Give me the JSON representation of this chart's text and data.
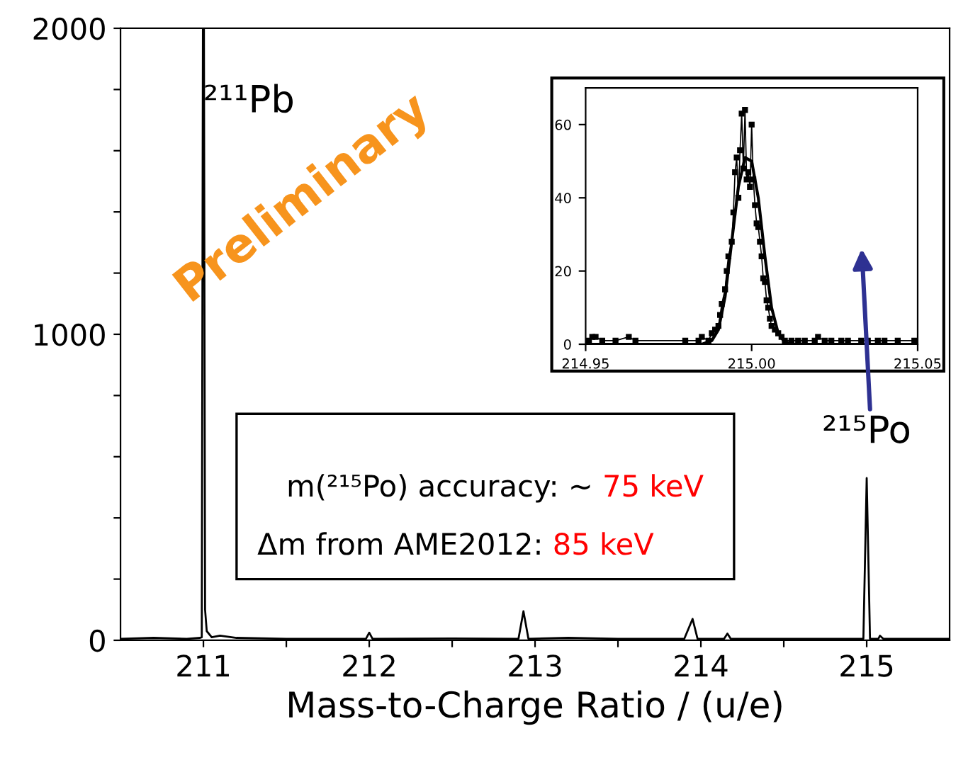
{
  "chart_data": [
    {
      "type": "line",
      "xlabel": "Mass-to-Charge Ratio / (u/e)",
      "xlim": [
        210.5,
        215.5
      ],
      "ylim": [
        0,
        2000
      ],
      "xticks": [
        211,
        {
          "value": 211.5,
          "label": null
        },
        212,
        {
          "value": 212.5,
          "label": null
        },
        213,
        {
          "value": 213.5,
          "label": null
        },
        214,
        {
          "value": 214.5,
          "label": null
        },
        215
      ],
      "yticks": [
        0,
        {
          "value": 200,
          "label": null
        },
        {
          "value": 400,
          "label": null
        },
        {
          "value": 600,
          "label": null
        },
        {
          "value": 800,
          "label": null
        },
        1000,
        {
          "value": 1200,
          "label": null
        },
        {
          "value": 1400,
          "label": null
        },
        {
          "value": 1600,
          "label": null
        },
        {
          "value": 1800,
          "label": null
        },
        2000
      ],
      "grid": false,
      "legend": false,
      "marker": "none",
      "line_style": "solid",
      "series": [
        {
          "color": "#000000",
          "x": [
            210.5,
            210.7,
            210.9,
            210.98,
            210.99,
            210.997,
            211.003,
            211.01,
            211.02,
            211.05,
            211.1,
            211.2,
            211.5,
            211.98,
            212.0,
            212.02,
            212.5,
            212.9,
            212.93,
            212.96,
            213.2,
            213.5,
            213.9,
            213.95,
            213.98,
            214.14,
            214.16,
            214.18,
            214.5,
            214.98,
            215.0,
            215.02,
            215.07,
            215.08,
            215.1,
            215.5
          ],
          "values": [
            5,
            8,
            5,
            8,
            10,
            2000,
            2000,
            100,
            30,
            10,
            15,
            8,
            5,
            5,
            25,
            5,
            6,
            5,
            95,
            5,
            8,
            5,
            5,
            70,
            5,
            5,
            22,
            5,
            5,
            5,
            530,
            5,
            5,
            15,
            5,
            5
          ]
        }
      ],
      "annotations": [
        {
          "text": "²¹¹Pb",
          "x": 211,
          "y": 1700
        },
        "²¹⁵Po",
        "Preliminary",
        "m(²¹⁵Po) accuracy: ~ ",
        "75 keV",
        "Δm from AME2012: ",
        "85 keV"
      ]
    },
    {
      "type": "line",
      "xlim": [
        214.95,
        215.05
      ],
      "ylim": [
        0,
        70
      ],
      "xticks": [
        {
          "value": 214.95,
          "label": "214.95"
        },
        {
          "value": 215.0,
          "label": "215.00"
        },
        {
          "value": 215.05,
          "label": "215.05"
        }
      ],
      "yticks": [
        0,
        20,
        40,
        60
      ],
      "grid": false,
      "legend": false,
      "series": [
        {
          "color": "#000000",
          "marker": "square",
          "line_style": "solid",
          "x": [
            214.95,
            214.951,
            214.952,
            214.953,
            214.955,
            214.959,
            214.963,
            214.965,
            214.98,
            214.984,
            214.985,
            214.987,
            214.988,
            214.989,
            214.99,
            214.9905,
            214.991,
            214.992,
            214.9925,
            214.993,
            214.994,
            214.9945,
            214.995,
            214.9955,
            214.996,
            214.9965,
            214.997,
            214.9975,
            214.998,
            214.9985,
            214.999,
            214.9995,
            215.0,
            215.0005,
            215.001,
            215.0015,
            215.002,
            215.0025,
            215.003,
            215.0035,
            215.004,
            215.0045,
            215.005,
            215.0055,
            215.006,
            215.007,
            215.008,
            215.009,
            215.01,
            215.012,
            215.014,
            215.016,
            215.019,
            215.02,
            215.022,
            215.024,
            215.027,
            215.029,
            215.033,
            215.035,
            215.038,
            215.04,
            215.044,
            215.049
          ],
          "values": [
            0,
            1,
            2,
            2,
            1,
            1,
            2,
            1,
            1,
            1,
            2,
            1,
            3,
            4,
            5,
            8,
            11,
            15,
            20,
            24,
            28,
            36,
            47,
            51,
            40,
            53,
            63,
            48,
            64,
            45,
            47,
            43,
            60,
            45,
            38,
            33,
            32,
            28,
            24,
            18,
            17,
            12,
            10,
            7,
            5,
            4,
            3,
            2,
            1,
            1,
            1,
            1,
            1,
            2,
            1,
            1,
            1,
            1,
            1,
            1,
            1,
            1,
            1,
            1
          ]
        },
        {
          "color": "#000000",
          "marker": "none",
          "line_style": "solid",
          "x": [
            214.95,
            214.985,
            214.988,
            214.99,
            214.992,
            214.994,
            214.996,
            214.998,
            215.0,
            215.002,
            215.004,
            215.006,
            215.008,
            215.01,
            215.013,
            215.05
          ],
          "values": [
            0,
            0,
            1,
            4,
            13,
            28,
            43,
            51,
            50,
            40,
            24,
            10,
            3,
            0.5,
            0,
            0
          ]
        }
      ]
    }
  ]
}
